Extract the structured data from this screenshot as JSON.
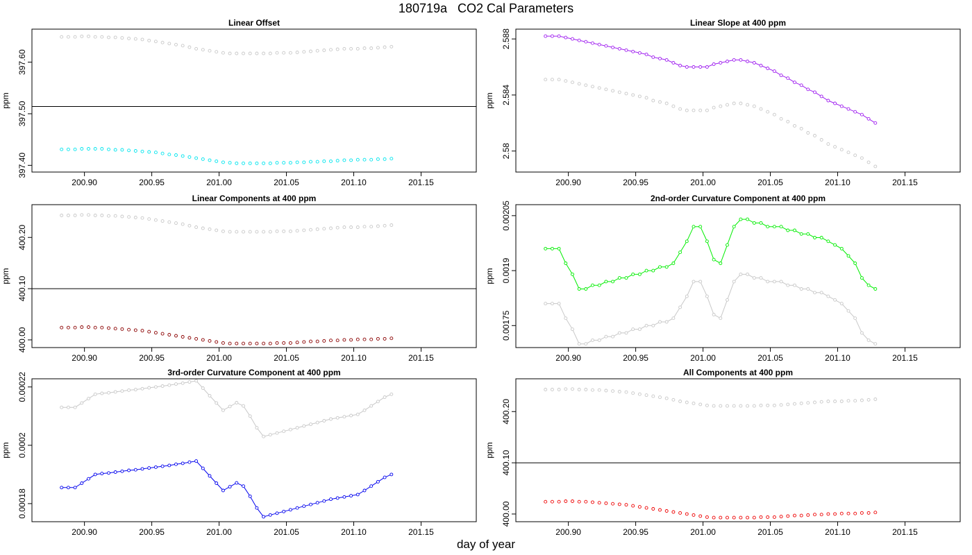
{
  "figure": {
    "title_run": "180719a",
    "title_text": "CO2 Cal Parameters",
    "xlabel": "day of year",
    "xticks": [
      200.9,
      200.95,
      201.0,
      201.05,
      201.1,
      201.15
    ],
    "xlim": [
      200.861,
      201.191
    ]
  },
  "chart_data": [
    {
      "type": "scatter",
      "title": "Linear Offset",
      "ylabel": "ppm",
      "ylim": [
        397.387,
        397.664
      ],
      "yticks": [
        397.4,
        397.5,
        397.6
      ],
      "hline": 397.514,
      "x_start": 200.883,
      "x_step": 0.005,
      "series": [
        {
          "color": "#c8c8c8",
          "line": false,
          "values": [
            397.649,
            397.649,
            397.649,
            397.65,
            397.65,
            397.649,
            397.649,
            397.648,
            397.648,
            397.647,
            397.646,
            397.645,
            397.644,
            397.642,
            397.64,
            397.638,
            397.636,
            397.634,
            397.632,
            397.629,
            397.626,
            397.624,
            397.622,
            397.62,
            397.618,
            397.617,
            397.617,
            397.617,
            397.617,
            397.617,
            397.617,
            397.617,
            397.618,
            397.618,
            397.618,
            397.619,
            397.62,
            397.621,
            397.622,
            397.623,
            397.624,
            397.625,
            397.626,
            397.626,
            397.626,
            397.627,
            397.627,
            397.628,
            397.629,
            397.63
          ]
        },
        {
          "color": "#00e5ee",
          "line": false,
          "values": [
            397.431,
            397.431,
            397.431,
            397.432,
            397.432,
            397.432,
            397.432,
            397.431,
            397.43,
            397.43,
            397.429,
            397.428,
            397.427,
            397.426,
            397.425,
            397.423,
            397.421,
            397.42,
            397.418,
            397.416,
            397.414,
            397.412,
            397.41,
            397.408,
            397.406,
            397.405,
            397.404,
            397.404,
            397.404,
            397.404,
            397.404,
            397.404,
            397.405,
            397.405,
            397.405,
            397.406,
            397.406,
            397.407,
            397.407,
            397.408,
            397.408,
            397.409,
            397.41,
            397.41,
            397.411,
            397.411,
            397.411,
            397.412,
            397.412,
            397.413
          ]
        }
      ]
    },
    {
      "type": "line",
      "title": "Linear Slope at 400 ppm",
      "ylabel": "ppm",
      "ylim": [
        2.5785,
        2.5887
      ],
      "yticks": [
        2.58,
        2.584,
        2.588
      ],
      "hline": null,
      "x_start": 200.883,
      "x_step": 0.005,
      "series": [
        {
          "color": "#c8c8c8",
          "line": false,
          "values": [
            2.5851,
            2.5851,
            2.5851,
            2.585,
            2.5849,
            2.5848,
            2.5847,
            2.5846,
            2.5845,
            2.5844,
            2.5843,
            2.5842,
            2.5841,
            2.584,
            2.5839,
            2.5838,
            2.5836,
            2.5835,
            2.5834,
            2.5832,
            2.583,
            2.5829,
            2.5829,
            2.5829,
            2.5829,
            2.5831,
            2.5832,
            2.5833,
            2.5834,
            2.5834,
            2.5833,
            2.5832,
            2.583,
            2.5828,
            2.5826,
            2.5823,
            2.5821,
            2.5818,
            2.5816,
            2.5813,
            2.5811,
            2.5808,
            2.5805,
            2.5803,
            2.5801,
            2.5799,
            2.5797,
            2.5795,
            2.5792,
            2.5789
          ]
        },
        {
          "color": "#a020f0",
          "line": true,
          "values": [
            2.5882,
            2.5882,
            2.5882,
            2.5881,
            2.588,
            2.5879,
            2.5878,
            2.5877,
            2.5876,
            2.5875,
            2.5874,
            2.5873,
            2.5872,
            2.5871,
            2.587,
            2.5869,
            2.5867,
            2.5866,
            2.5865,
            2.5863,
            2.5861,
            2.586,
            2.586,
            2.586,
            2.586,
            2.5862,
            2.5863,
            2.5864,
            2.5865,
            2.5865,
            2.5864,
            2.5863,
            2.5861,
            2.5859,
            2.5857,
            2.5854,
            2.5852,
            2.5849,
            2.5847,
            2.5844,
            2.5842,
            2.5839,
            2.5836,
            2.5834,
            2.5832,
            2.583,
            2.5828,
            2.5826,
            2.5823,
            2.582
          ]
        }
      ]
    },
    {
      "type": "scatter",
      "title": "Linear Components at 400 ppm",
      "ylabel": "ppm",
      "ylim": [
        399.985,
        400.264
      ],
      "yticks": [
        400.0,
        400.1,
        400.2
      ],
      "hline": 400.1,
      "x_start": 200.883,
      "x_step": 0.005,
      "series": [
        {
          "color": "#c8c8c8",
          "line": false,
          "values": [
            400.243,
            400.243,
            400.243,
            400.244,
            400.244,
            400.243,
            400.243,
            400.242,
            400.242,
            400.241,
            400.24,
            400.239,
            400.238,
            400.236,
            400.234,
            400.232,
            400.23,
            400.228,
            400.226,
            400.223,
            400.22,
            400.218,
            400.216,
            400.214,
            400.212,
            400.211,
            400.211,
            400.211,
            400.211,
            400.211,
            400.211,
            400.211,
            400.212,
            400.212,
            400.212,
            400.213,
            400.214,
            400.215,
            400.216,
            400.217,
            400.218,
            400.219,
            400.22,
            400.22,
            400.22,
            400.221,
            400.221,
            400.222,
            400.223,
            400.224
          ]
        },
        {
          "color": "#8b0000",
          "line": false,
          "values": [
            400.024,
            400.024,
            400.024,
            400.025,
            400.025,
            400.024,
            400.024,
            400.023,
            400.022,
            400.021,
            400.02,
            400.019,
            400.018,
            400.016,
            400.014,
            400.012,
            400.01,
            400.008,
            400.006,
            400.004,
            400.002,
            400.0,
            399.998,
            399.996,
            399.994,
            399.993,
            399.993,
            399.993,
            399.993,
            399.993,
            399.993,
            399.993,
            399.994,
            399.994,
            399.994,
            399.995,
            399.996,
            399.997,
            399.997,
            399.998,
            399.999,
            399.999,
            400.0,
            400.0,
            400.001,
            400.001,
            400.001,
            400.002,
            400.002,
            400.003
          ]
        }
      ]
    },
    {
      "type": "line",
      "title": "2nd-order Curvature Component at 400 ppm",
      "ylabel": "ppm",
      "ylim": [
        0.00169,
        0.00208
      ],
      "yticks": [
        0.00175,
        0.0019,
        0.00205
      ],
      "hline": null,
      "x_start": 200.883,
      "x_step": 0.005,
      "series": [
        {
          "color": "#c8c8c8",
          "line": true,
          "values": [
            0.00181,
            0.00181,
            0.00181,
            0.00177,
            0.00174,
            0.0017,
            0.0017,
            0.00171,
            0.00171,
            0.00172,
            0.00172,
            0.00173,
            0.00173,
            0.00174,
            0.00174,
            0.00175,
            0.00175,
            0.00176,
            0.00176,
            0.00177,
            0.0018,
            0.00183,
            0.00187,
            0.00187,
            0.00183,
            0.00178,
            0.00177,
            0.00182,
            0.00187,
            0.00189,
            0.00189,
            0.00188,
            0.00188,
            0.00187,
            0.00187,
            0.00187,
            0.00186,
            0.00186,
            0.00185,
            0.00185,
            0.00184,
            0.00184,
            0.00183,
            0.00182,
            0.00181,
            0.00179,
            0.00177,
            0.00173,
            0.00171,
            0.0017
          ]
        },
        {
          "color": "#00ee00",
          "line": true,
          "values": [
            0.00196,
            0.00196,
            0.00196,
            0.00192,
            0.00189,
            0.00185,
            0.00185,
            0.00186,
            0.00186,
            0.00187,
            0.00187,
            0.00188,
            0.00188,
            0.00189,
            0.00189,
            0.0019,
            0.0019,
            0.00191,
            0.00191,
            0.00192,
            0.00195,
            0.00198,
            0.00202,
            0.00202,
            0.00198,
            0.00193,
            0.00192,
            0.00197,
            0.00202,
            0.00204,
            0.00204,
            0.00203,
            0.00203,
            0.00202,
            0.00202,
            0.00202,
            0.00201,
            0.00201,
            0.002,
            0.002,
            0.00199,
            0.00199,
            0.00198,
            0.00197,
            0.00196,
            0.00194,
            0.00192,
            0.00188,
            0.00186,
            0.00185
          ]
        }
      ]
    },
    {
      "type": "line",
      "title": "3rd-order Curvature Component at 400 ppm",
      "ylabel": "ppm",
      "ylim": [
        0.0001738,
        0.0002228
      ],
      "yticks": [
        0.00018,
        0.0002,
        0.00022
      ],
      "hline": null,
      "x_start": 200.883,
      "x_step": 0.005,
      "series": [
        {
          "color": "#c8c8c8",
          "line": true,
          "values": [
            0.000213,
            0.000213,
            0.000213,
            0.0002145,
            0.000216,
            0.0002175,
            0.0002178,
            0.000218,
            0.0002183,
            0.0002186,
            0.0002189,
            0.0002191,
            0.0002194,
            0.0002197,
            0.00022,
            0.0002203,
            0.0002206,
            0.000221,
            0.0002213,
            0.0002217,
            0.0002221,
            0.0002196,
            0.000217,
            0.0002145,
            0.000212,
            0.0002133,
            0.0002146,
            0.0002135,
            0.00021,
            0.000206,
            0.000203,
            0.0002036,
            0.0002042,
            0.0002048,
            0.0002054,
            0.000206,
            0.0002066,
            0.0002072,
            0.0002078,
            0.0002084,
            0.000209,
            0.0002094,
            0.0002098,
            0.0002102,
            0.0002106,
            0.000212,
            0.0002135,
            0.000215,
            0.0002165,
            0.0002175
          ]
        },
        {
          "color": "#0000ee",
          "line": true,
          "values": [
            0.0001855,
            0.0001855,
            0.0001855,
            0.000187,
            0.0001885,
            0.00019,
            0.0001903,
            0.0001905,
            0.0001908,
            0.0001911,
            0.0001914,
            0.0001916,
            0.0001919,
            0.0001922,
            0.0001925,
            0.0001928,
            0.0001931,
            0.0001935,
            0.0001938,
            0.0001942,
            0.0001946,
            0.0001921,
            0.0001895,
            0.000187,
            0.0001845,
            0.0001858,
            0.0001871,
            0.000186,
            0.0001825,
            0.0001785,
            0.0001755,
            0.0001761,
            0.0001767,
            0.0001773,
            0.0001779,
            0.0001785,
            0.0001791,
            0.0001797,
            0.0001803,
            0.0001809,
            0.0001815,
            0.0001819,
            0.0001823,
            0.0001827,
            0.0001831,
            0.0001845,
            0.000186,
            0.0001875,
            0.000189,
            0.00019
          ]
        }
      ]
    },
    {
      "type": "scatter",
      "title": "All Components at 400 ppm",
      "ylabel": "ppm",
      "ylim": [
        399.985,
        400.264
      ],
      "yticks": [
        400.0,
        400.1,
        400.2
      ],
      "hline": 400.1,
      "x_start": 200.883,
      "x_step": 0.005,
      "series": [
        {
          "color": "#c8c8c8",
          "line": false,
          "values": [
            400.243,
            400.243,
            400.243,
            400.244,
            400.244,
            400.243,
            400.243,
            400.242,
            400.242,
            400.241,
            400.24,
            400.239,
            400.238,
            400.236,
            400.234,
            400.232,
            400.23,
            400.228,
            400.226,
            400.223,
            400.22,
            400.218,
            400.216,
            400.214,
            400.212,
            400.211,
            400.211,
            400.211,
            400.211,
            400.211,
            400.211,
            400.211,
            400.212,
            400.212,
            400.212,
            400.213,
            400.214,
            400.215,
            400.216,
            400.217,
            400.218,
            400.219,
            400.22,
            400.22,
            400.22,
            400.221,
            400.221,
            400.222,
            400.223,
            400.224
          ]
        },
        {
          "color": "#ee0000",
          "line": false,
          "values": [
            400.024,
            400.024,
            400.024,
            400.025,
            400.025,
            400.024,
            400.024,
            400.023,
            400.022,
            400.021,
            400.02,
            400.019,
            400.018,
            400.016,
            400.014,
            400.012,
            400.01,
            400.008,
            400.006,
            400.004,
            400.002,
            400.0,
            399.998,
            399.996,
            399.994,
            399.993,
            399.993,
            399.993,
            399.993,
            399.993,
            399.993,
            399.993,
            399.994,
            399.994,
            399.994,
            399.995,
            399.996,
            399.997,
            399.997,
            399.998,
            399.999,
            399.999,
            400.0,
            400.0,
            400.001,
            400.001,
            400.001,
            400.002,
            400.002,
            400.003
          ]
        }
      ]
    }
  ]
}
